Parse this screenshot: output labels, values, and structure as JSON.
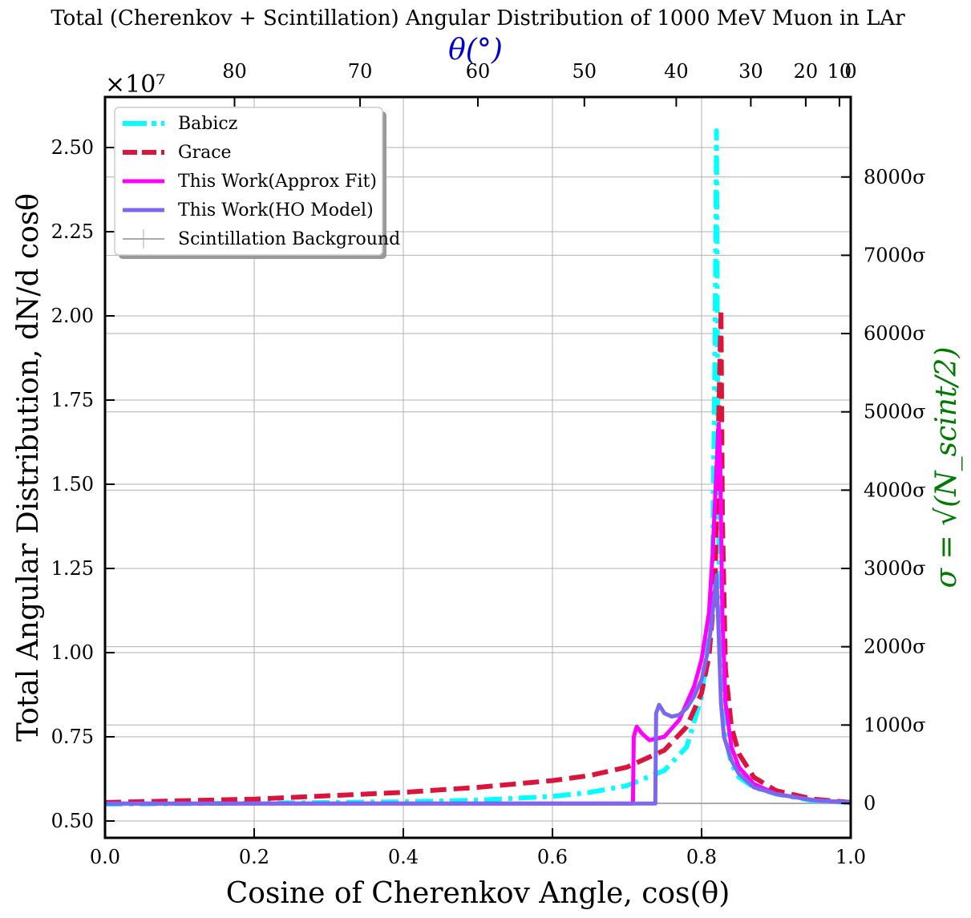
{
  "chart_data": {
    "type": "line",
    "title": "Total (Cherenkov + Scintillation) Angular Distribution of 1000 MeV Muon in LAr",
    "xlabel": "Cosine of Cherenkov Angle, cos(θ)",
    "ylabel": "Total Angular Distribution, dN/d cosθ",
    "y_multiplier": "×10⁷",
    "top_xlabel": "θ(°)",
    "right_ylabel": "σ = √(N_scint/2)",
    "xlim": [
      0.0,
      1.0
    ],
    "ylim": [
      0.45,
      2.65
    ],
    "xticks": [
      0.0,
      0.2,
      0.4,
      0.6,
      0.8,
      1.0
    ],
    "xtick_labels": [
      "0.0",
      "0.2",
      "0.4",
      "0.6",
      "0.8",
      "1.0"
    ],
    "yticks": [
      0.5,
      0.75,
      1.0,
      1.25,
      1.5,
      1.75,
      2.0,
      2.25,
      2.5
    ],
    "ytick_labels": [
      "0.50",
      "0.75",
      "1.00",
      "1.25",
      "1.50",
      "1.75",
      "2.00",
      "2.25",
      "2.50"
    ],
    "top_ticks_deg": [
      80,
      70,
      60,
      50,
      40,
      30,
      20,
      10,
      0
    ],
    "top_tick_labels": [
      "80",
      "70",
      "60",
      "50",
      "40",
      "30",
      "20",
      "10",
      "0"
    ],
    "right_ticks": [
      0,
      1000,
      2000,
      3000,
      4000,
      5000,
      6000,
      7000,
      8000
    ],
    "right_tick_labels": [
      "0",
      "1000σ",
      "2000σ",
      "3000σ",
      "4000σ",
      "5000σ",
      "6000σ",
      "7000σ",
      "8000σ"
    ],
    "right_zero_y": 0.5525,
    "right_unit_per_1000": 0.2325,
    "grid": true,
    "legend_position": "top-left",
    "series": [
      {
        "name": "Babicz",
        "color": "#00FFFF",
        "style": "dashdot",
        "x": [
          0.0,
          0.2,
          0.4,
          0.5,
          0.6,
          0.65,
          0.7,
          0.75,
          0.78,
          0.8,
          0.81,
          0.815,
          0.818,
          0.82,
          0.822,
          0.825,
          0.83,
          0.835,
          0.84,
          0.85,
          0.87,
          0.9,
          0.95,
          1.0
        ],
        "y": [
          0.55,
          0.553,
          0.557,
          0.562,
          0.573,
          0.585,
          0.605,
          0.65,
          0.72,
          0.87,
          1.05,
          1.3,
          1.9,
          2.55,
          1.5,
          0.95,
          0.8,
          0.72,
          0.67,
          0.63,
          0.6,
          0.58,
          0.56,
          0.555
        ]
      },
      {
        "name": "Grace",
        "color": "#DC143C",
        "style": "dashed",
        "x": [
          0.0,
          0.2,
          0.4,
          0.5,
          0.6,
          0.65,
          0.7,
          0.75,
          0.78,
          0.8,
          0.81,
          0.818,
          0.822,
          0.826,
          0.828,
          0.832,
          0.84,
          0.85,
          0.87,
          0.9,
          0.95,
          1.0
        ],
        "y": [
          0.555,
          0.565,
          0.585,
          0.6,
          0.62,
          0.635,
          0.66,
          0.71,
          0.78,
          0.88,
          0.99,
          1.2,
          1.6,
          2.02,
          1.4,
          0.95,
          0.78,
          0.7,
          0.63,
          0.59,
          0.565,
          0.555
        ]
      },
      {
        "name": "This Work(Approx Fit)",
        "color": "#FF00FF",
        "style": "solid",
        "x": [
          0.0,
          0.5,
          0.708,
          0.709,
          0.713,
          0.72,
          0.73,
          0.75,
          0.77,
          0.79,
          0.8,
          0.81,
          0.815,
          0.82,
          0.823,
          0.825,
          0.828,
          0.832,
          0.84,
          0.85,
          0.87,
          0.9,
          0.95,
          1.0
        ],
        "y": [
          0.552,
          0.552,
          0.552,
          0.75,
          0.78,
          0.76,
          0.74,
          0.75,
          0.8,
          0.9,
          0.98,
          1.12,
          1.3,
          1.55,
          1.68,
          1.55,
          1.1,
          0.85,
          0.72,
          0.66,
          0.61,
          0.58,
          0.562,
          0.555
        ]
      },
      {
        "name": "This Work(HO Model)",
        "color": "#7B68EE",
        "style": "solid",
        "x": [
          0.0,
          0.5,
          0.738,
          0.739,
          0.743,
          0.75,
          0.76,
          0.77,
          0.78,
          0.79,
          0.8,
          0.808,
          0.813,
          0.817,
          0.82,
          0.823,
          0.826,
          0.83,
          0.84,
          0.85,
          0.87,
          0.9,
          0.95,
          1.0
        ],
        "y": [
          0.552,
          0.552,
          0.552,
          0.82,
          0.845,
          0.82,
          0.81,
          0.815,
          0.835,
          0.87,
          0.92,
          1.0,
          1.08,
          1.17,
          1.23,
          1.05,
          0.85,
          0.75,
          0.68,
          0.64,
          0.6,
          0.58,
          0.562,
          0.555
        ]
      },
      {
        "name": "Scintillation Background",
        "color": "#AAAAAA",
        "style": "thin",
        "x": [
          0.0,
          1.0
        ],
        "y": [
          0.5525,
          0.5525
        ]
      }
    ]
  }
}
